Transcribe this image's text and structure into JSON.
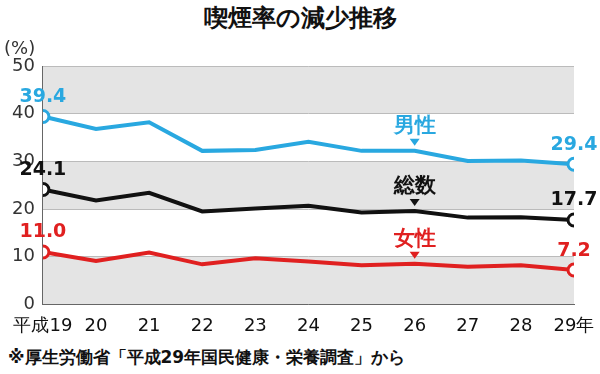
{
  "chart_data": {
    "type": "line",
    "title": "喫煙率の減少推移",
    "ylabel": "(%)",
    "note": "※厚生労働省「平成29年国民健康・栄養調査」から",
    "categories": [
      "平成19",
      "20",
      "21",
      "22",
      "23",
      "24",
      "25",
      "26",
      "27",
      "28",
      "29年"
    ],
    "series": [
      {
        "name": "男性",
        "color": "#29a8e0",
        "values": [
          39.4,
          36.8,
          38.2,
          32.2,
          32.4,
          34.1,
          32.2,
          32.2,
          30.1,
          30.2,
          29.4
        ],
        "value_labels": [
          "39.4",
          null,
          null,
          null,
          null,
          null,
          null,
          null,
          null,
          null,
          "29.4"
        ]
      },
      {
        "name": "総数",
        "color": "#111111",
        "values": [
          24.1,
          21.8,
          23.4,
          19.5,
          20.1,
          20.7,
          19.3,
          19.6,
          18.2,
          18.3,
          17.7
        ],
        "value_labels": [
          "24.1",
          null,
          null,
          null,
          null,
          null,
          null,
          null,
          null,
          null,
          "17.7"
        ]
      },
      {
        "name": "女性",
        "color": "#e02020",
        "values": [
          11.0,
          9.1,
          10.9,
          8.4,
          9.7,
          9.0,
          8.2,
          8.5,
          7.9,
          8.2,
          7.2
        ],
        "value_labels": [
          "11.0",
          null,
          null,
          null,
          null,
          null,
          null,
          null,
          null,
          null,
          "7.2"
        ]
      }
    ],
    "ylim": [
      0,
      50
    ],
    "yticks": [
      0,
      10,
      20,
      30,
      40,
      50
    ],
    "grid": true,
    "marker": "circle"
  }
}
